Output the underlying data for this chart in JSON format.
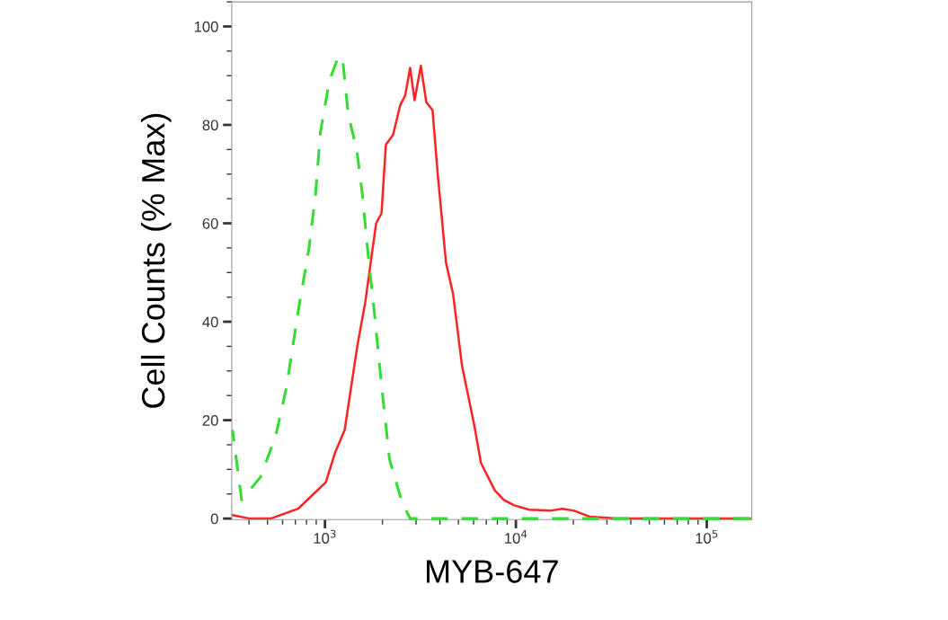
{
  "chart_data": {
    "type": "line",
    "xlabel": "MYB-647",
    "ylabel": "Cell Counts (% Max)",
    "log": "x",
    "xlim": [
      325,
      172000
    ],
    "ylim": [
      -0.2,
      105
    ],
    "xticks": [
      {
        "value": 1000,
        "label": "10$^{3}$"
      },
      {
        "value": 10000,
        "label": "10$^{4}$"
      },
      {
        "value": 100000,
        "label": "10$^{5}$"
      }
    ],
    "yticks": [
      0,
      20,
      40,
      60,
      80,
      100
    ],
    "grid": false,
    "legend": false,
    "marker": "none",
    "series": [
      {
        "color": "#33dd33",
        "line_style": "dashed",
        "x": [
          328,
          366,
          459,
          552,
          628,
          723,
          823,
          893,
          947,
          1055,
          1170,
          1235,
          1325,
          1467,
          1568,
          1700,
          1813,
          1967,
          2178,
          2525,
          2793,
          168000
        ],
        "values": [
          18,
          3.8,
          8.4,
          16.8,
          26.6,
          42,
          54.7,
          66,
          78.6,
          89,
          93.7,
          93.7,
          82,
          75,
          66,
          52,
          42,
          28,
          12,
          3.5,
          0,
          0
        ]
      },
      {
        "color": "#ff2222",
        "line_style": "solid",
        "x": [
          328,
          403,
          520,
          723,
          928,
          1011,
          1127,
          1268,
          1476,
          1626,
          1853,
          1977,
          2085,
          2274,
          2478,
          2632,
          2793,
          2946,
          3178,
          3394,
          3659,
          3906,
          4305,
          4690,
          5224,
          6050,
          6561,
          7762,
          8650,
          9790,
          11750,
          15070,
          17540,
          20190,
          24270,
          28840,
          34670,
          168000
        ],
        "values": [
          0.7,
          0,
          0,
          2,
          6,
          7.4,
          13.3,
          18,
          35,
          44,
          60,
          62,
          76,
          78,
          84,
          86,
          91.6,
          85,
          92,
          84.6,
          83,
          69.5,
          52,
          45.6,
          31,
          19,
          11.3,
          5.7,
          3.8,
          2.7,
          1.8,
          1.6,
          2,
          1.6,
          0.4,
          0.2,
          0,
          0
        ]
      }
    ]
  }
}
